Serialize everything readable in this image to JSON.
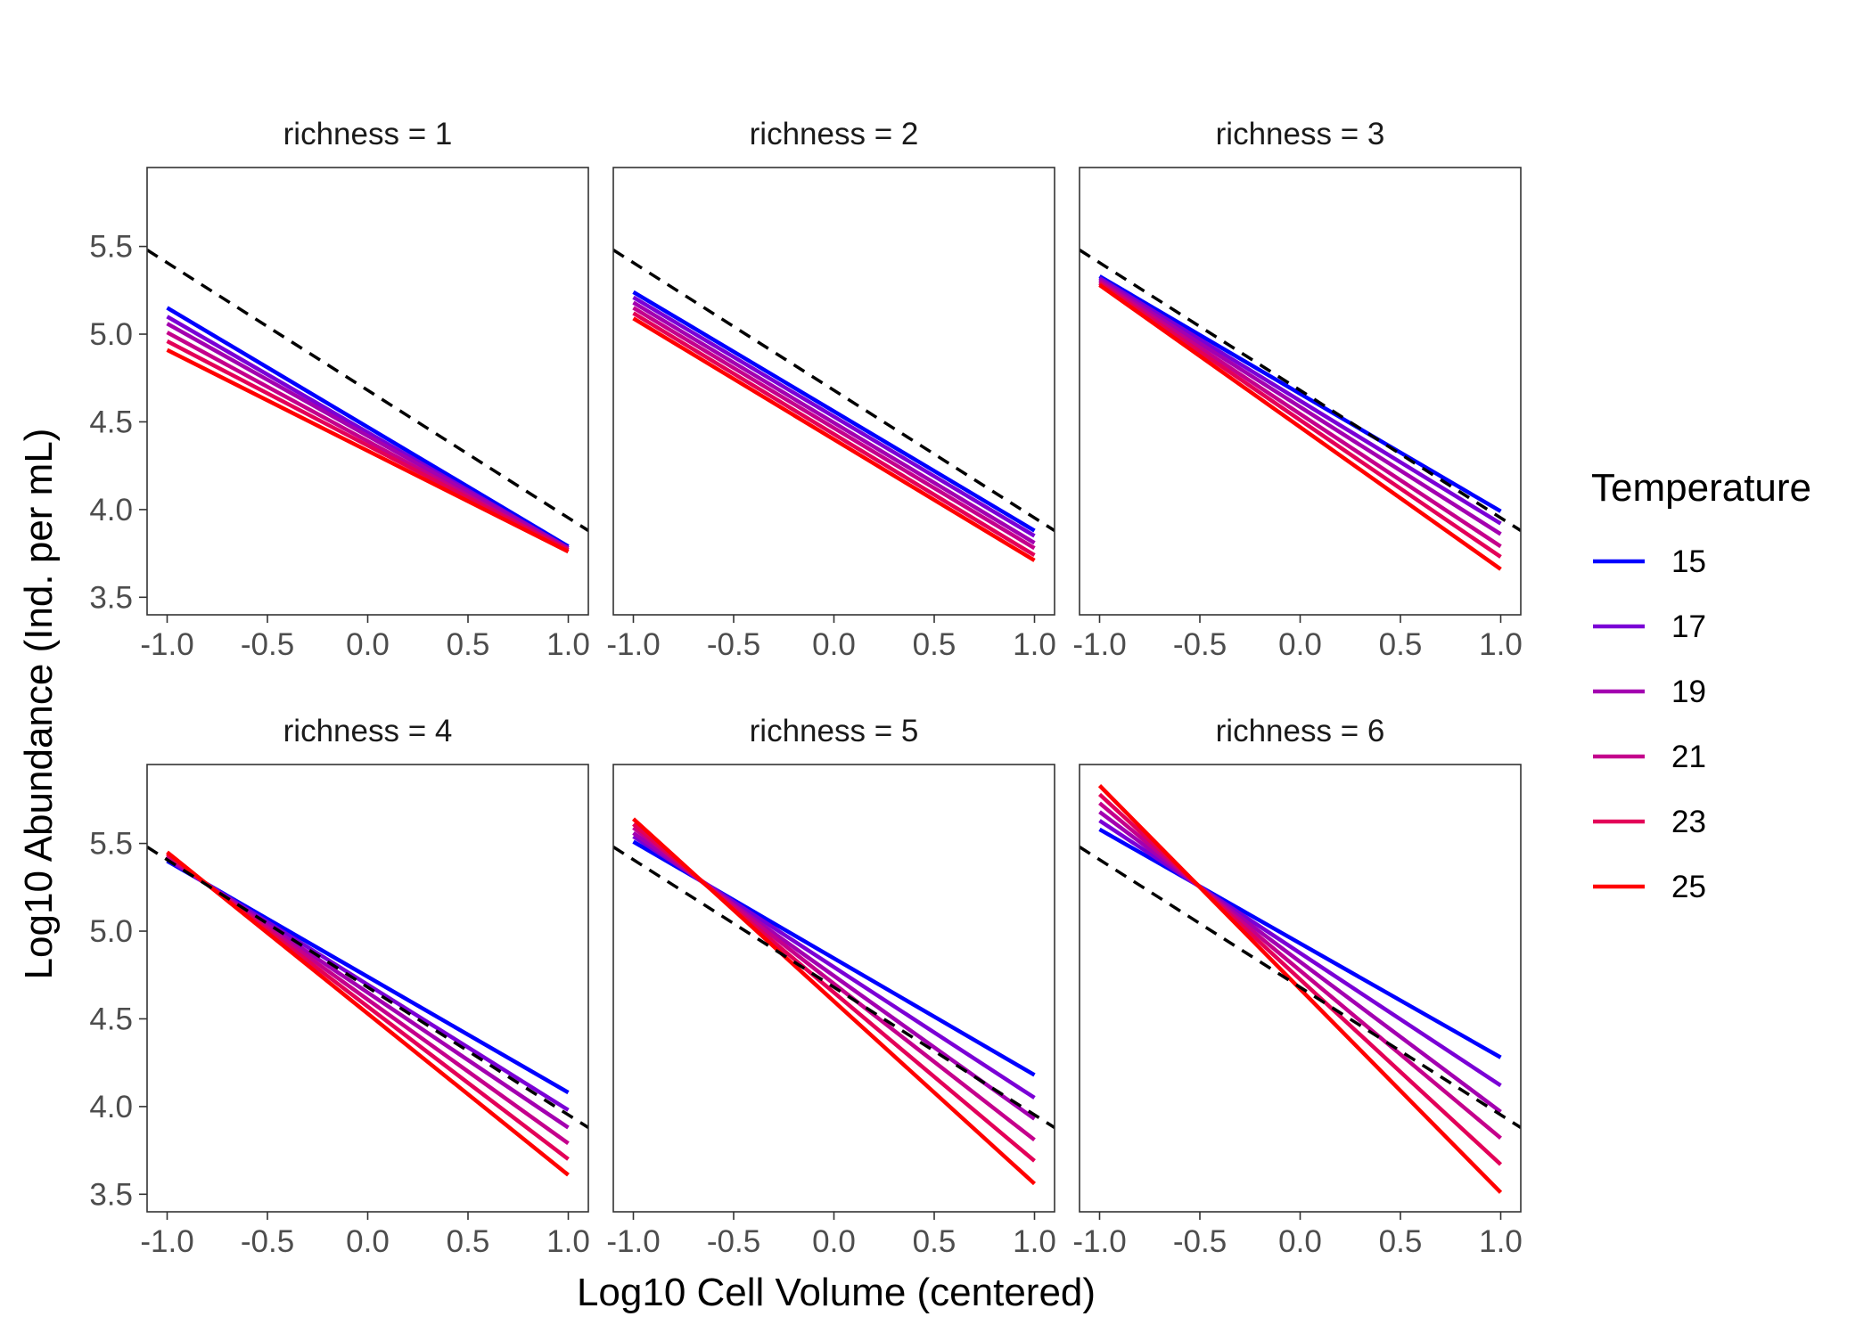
{
  "chart_data": {
    "type": "line",
    "facet_variable": "richness",
    "xlabel": "Log10 Cell Volume (centered)",
    "ylabel": "Log10 Abundance (Ind. per mL)",
    "xlim": [
      -1.1,
      1.1
    ],
    "ylim": [
      3.4,
      5.95
    ],
    "x_ticks": [
      -1.0,
      -0.5,
      0.0,
      0.5,
      1.0
    ],
    "x_tick_labels": [
      "-1.0",
      "-0.5",
      "0.0",
      "0.5",
      "1.0"
    ],
    "y_ticks": [
      3.5,
      4.0,
      4.5,
      5.0,
      5.5
    ],
    "y_tick_labels": [
      "3.5",
      "4.0",
      "4.5",
      "5.0",
      "5.5"
    ],
    "grid": false,
    "legend": {
      "title": "Temperature",
      "position": "right",
      "entries": [
        {
          "label": "15",
          "color": "#0000ff"
        },
        {
          "label": "17",
          "color": "#7a00d6"
        },
        {
          "label": "19",
          "color": "#a300b0"
        },
        {
          "label": "21",
          "color": "#c4008c"
        },
        {
          "label": "23",
          "color": "#e30058"
        },
        {
          "label": "25",
          "color": "#ff0000"
        }
      ]
    },
    "reference_line": {
      "style": "dashed",
      "color": "#000000",
      "x": [
        -1.1,
        1.1
      ],
      "y": [
        5.48,
        3.88
      ]
    },
    "panels": [
      {
        "strip": "richness = 1",
        "x": [
          -1.0,
          1.0
        ],
        "series": [
          {
            "name": "15",
            "y": [
              5.15,
              3.79
            ]
          },
          {
            "name": "17",
            "y": [
              5.1,
              3.78
            ]
          },
          {
            "name": "19",
            "y": [
              5.06,
              3.78
            ]
          },
          {
            "name": "21",
            "y": [
              5.01,
              3.77
            ]
          },
          {
            "name": "23",
            "y": [
              4.96,
              3.77
            ]
          },
          {
            "name": "25",
            "y": [
              4.91,
              3.76
            ]
          }
        ]
      },
      {
        "strip": "richness = 2",
        "x": [
          -1.0,
          1.0
        ],
        "series": [
          {
            "name": "15",
            "y": [
              5.24,
              3.88
            ]
          },
          {
            "name": "17",
            "y": [
              5.21,
              3.85
            ]
          },
          {
            "name": "19",
            "y": [
              5.18,
              3.81
            ]
          },
          {
            "name": "21",
            "y": [
              5.15,
              3.78
            ]
          },
          {
            "name": "23",
            "y": [
              5.12,
              3.74
            ]
          },
          {
            "name": "25",
            "y": [
              5.09,
              3.71
            ]
          }
        ]
      },
      {
        "strip": "richness = 3",
        "x": [
          -1.0,
          1.0
        ],
        "series": [
          {
            "name": "15",
            "y": [
              5.33,
              3.99
            ]
          },
          {
            "name": "17",
            "y": [
              5.32,
              3.92
            ]
          },
          {
            "name": "19",
            "y": [
              5.31,
              3.86
            ]
          },
          {
            "name": "21",
            "y": [
              5.3,
              3.79
            ]
          },
          {
            "name": "23",
            "y": [
              5.29,
              3.73
            ]
          },
          {
            "name": "25",
            "y": [
              5.28,
              3.66
            ]
          }
        ]
      },
      {
        "strip": "richness = 4",
        "x": [
          -1.0,
          1.0
        ],
        "series": [
          {
            "name": "15",
            "y": [
              5.4,
              4.08
            ]
          },
          {
            "name": "17",
            "y": [
              5.41,
              3.98
            ]
          },
          {
            "name": "19",
            "y": [
              5.42,
              3.88
            ]
          },
          {
            "name": "21",
            "y": [
              5.43,
              3.79
            ]
          },
          {
            "name": "23",
            "y": [
              5.44,
              3.7
            ]
          },
          {
            "name": "25",
            "y": [
              5.45,
              3.61
            ]
          }
        ]
      },
      {
        "strip": "richness = 5",
        "x": [
          -1.0,
          1.0
        ],
        "series": [
          {
            "name": "15",
            "y": [
              5.51,
              4.18
            ]
          },
          {
            "name": "17",
            "y": [
              5.54,
              4.05
            ]
          },
          {
            "name": "19",
            "y": [
              5.56,
              3.93
            ]
          },
          {
            "name": "21",
            "y": [
              5.59,
              3.81
            ]
          },
          {
            "name": "23",
            "y": [
              5.61,
              3.69
            ]
          },
          {
            "name": "25",
            "y": [
              5.64,
              3.56
            ]
          }
        ]
      },
      {
        "strip": "richness = 6",
        "x": [
          -1.0,
          1.0
        ],
        "series": [
          {
            "name": "15",
            "y": [
              5.58,
              4.28
            ]
          },
          {
            "name": "17",
            "y": [
              5.63,
              4.12
            ]
          },
          {
            "name": "19",
            "y": [
              5.68,
              3.97
            ]
          },
          {
            "name": "21",
            "y": [
              5.73,
              3.82
            ]
          },
          {
            "name": "23",
            "y": [
              5.78,
              3.67
            ]
          },
          {
            "name": "25",
            "y": [
              5.83,
              3.51
            ]
          }
        ]
      }
    ]
  }
}
